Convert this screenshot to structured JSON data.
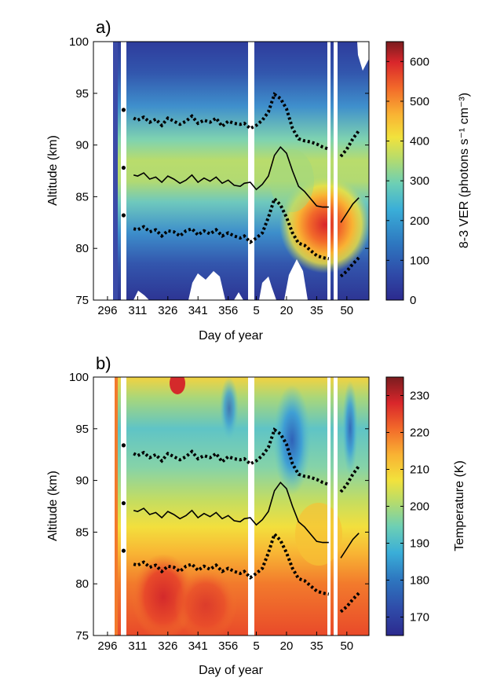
{
  "chart_data": [
    {
      "type": "heatmap",
      "panel_label": "a)",
      "xlabel": "Day of year",
      "ylabel": "Altitude (km)",
      "xticks": [
        "296",
        "311",
        "326",
        "341",
        "356",
        "5",
        "20",
        "35",
        "50"
      ],
      "yticks": [
        "75",
        "80",
        "85",
        "90",
        "95",
        "100"
      ],
      "ylim": [
        75,
        100
      ],
      "colorbar": {
        "label": "8-3 VER (photons s⁻¹ cm⁻³)",
        "ticks": [
          "0",
          "100",
          "200",
          "300",
          "400",
          "500",
          "600"
        ],
        "range": [
          0,
          650
        ]
      },
      "series": [
        {
          "name": "peak altitude",
          "style": "solid",
          "x": [
            309,
            311,
            314,
            317,
            320,
            323,
            326,
            329,
            332,
            335,
            338,
            341,
            344,
            347,
            350,
            353,
            356,
            359,
            362,
            364,
            367,
            370,
            373,
            376,
            379,
            382,
            385,
            388,
            391,
            394,
            397,
            400,
            403,
            406,
            409,
            412,
            415,
            418,
            421
          ],
          "y": [
            87.1,
            87.0,
            87.3,
            86.7,
            86.9,
            86.4,
            87.0,
            86.7,
            86.3,
            86.6,
            87.1,
            86.4,
            86.8,
            86.5,
            86.9,
            86.3,
            86.6,
            86.1,
            86.0,
            86.3,
            86.4,
            85.7,
            86.2,
            87.0,
            89.0,
            89.8,
            89.2,
            87.5,
            86.0,
            85.5,
            84.8,
            84.1,
            84.0,
            84.0,
            null,
            82.5,
            83.4,
            84.3,
            84.9
          ]
        },
        {
          "name": "upper half-width",
          "style": "dotted",
          "x": [
            309,
            311,
            314,
            317,
            320,
            323,
            326,
            329,
            332,
            335,
            338,
            341,
            344,
            347,
            350,
            353,
            356,
            359,
            362,
            364,
            367,
            370,
            373,
            376,
            379,
            382,
            385,
            388,
            391,
            394,
            397,
            400,
            403,
            406,
            409,
            412,
            415,
            418,
            421
          ],
          "y": [
            92.6,
            92.4,
            92.7,
            92.2,
            92.5,
            91.9,
            92.6,
            92.3,
            92.0,
            92.3,
            92.8,
            92.1,
            92.4,
            92.2,
            92.6,
            91.8,
            92.3,
            92.1,
            92.0,
            92.1,
            91.6,
            91.9,
            92.4,
            93.2,
            94.9,
            94.5,
            93.5,
            91.6,
            90.6,
            90.4,
            90.3,
            90.1,
            89.8,
            89.6,
            null,
            88.9,
            89.6,
            90.6,
            91.4
          ]
        },
        {
          "name": "lower half-width",
          "style": "dotted",
          "x": [
            309,
            311,
            314,
            317,
            320,
            323,
            326,
            329,
            332,
            335,
            338,
            341,
            344,
            347,
            350,
            353,
            356,
            359,
            362,
            364,
            367,
            370,
            373,
            376,
            379,
            382,
            385,
            388,
            391,
            394,
            397,
            400,
            403,
            406,
            409,
            412,
            415,
            418,
            421
          ],
          "y": [
            81.9,
            81.8,
            82.1,
            81.6,
            81.8,
            81.2,
            81.7,
            81.6,
            81.2,
            81.7,
            81.9,
            81.3,
            81.7,
            81.4,
            81.8,
            81.2,
            81.5,
            81.2,
            81.0,
            81.2,
            80.6,
            81.0,
            81.5,
            83.0,
            84.8,
            84.2,
            83.0,
            81.5,
            80.5,
            80.3,
            79.8,
            79.3,
            79.1,
            79.0,
            null,
            77.3,
            77.8,
            78.5,
            79.1
          ]
        }
      ],
      "first_day_points": {
        "x": 304,
        "y": [
          93.4,
          87.8,
          83.2
        ]
      }
    },
    {
      "type": "heatmap",
      "panel_label": "b)",
      "xlabel": "Day of year",
      "ylabel": "Altitude (km)",
      "xticks": [
        "296",
        "311",
        "326",
        "341",
        "356",
        "5",
        "20",
        "35",
        "50"
      ],
      "yticks": [
        "75",
        "80",
        "85",
        "90",
        "95",
        "100"
      ],
      "ylim": [
        75,
        100
      ],
      "colorbar": {
        "label": "Temperature (K)",
        "ticks": [
          "170",
          "180",
          "190",
          "200",
          "210",
          "220",
          "230"
        ],
        "range": [
          165,
          235
        ]
      },
      "series": [
        {
          "name": "peak altitude",
          "style": "solid",
          "same_as_panel": "a"
        },
        {
          "name": "upper half-width",
          "style": "dotted",
          "same_as_panel": "a"
        },
        {
          "name": "lower half-width",
          "style": "dotted",
          "same_as_panel": "a"
        }
      ],
      "first_day_points": {
        "x": 304,
        "y": [
          93.4,
          87.8,
          83.2
        ]
      }
    }
  ]
}
